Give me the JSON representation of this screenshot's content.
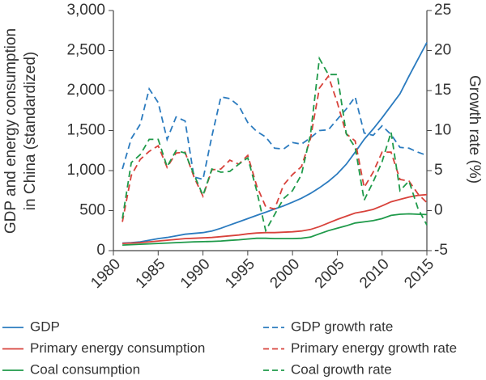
{
  "chart_data": {
    "type": "line",
    "ylabel": [
      "GDP and energy consumption",
      "in China (standardized)"
    ],
    "y2label": "Growth rate (%)",
    "x": [
      1981,
      1982,
      1983,
      1984,
      1985,
      1986,
      1987,
      1988,
      1989,
      1990,
      1991,
      1992,
      1993,
      1994,
      1995,
      1996,
      1997,
      1998,
      1999,
      2000,
      2001,
      2002,
      2003,
      2004,
      2005,
      2006,
      2007,
      2008,
      2009,
      2010,
      2011,
      2012,
      2013,
      2014,
      2015
    ],
    "xlim": [
      1980,
      2015
    ],
    "xticks": [
      1980,
      1985,
      1990,
      1995,
      2000,
      2005,
      2010,
      2015
    ],
    "ylim": [
      0,
      3000
    ],
    "yticks": [
      0,
      500,
      {
        "value": 1000,
        "label": "1,000"
      },
      {
        "value": 1500,
        "label": "1,500"
      },
      {
        "value": 2000,
        "label": "2,000"
      },
      {
        "value": 2500,
        "label": "2,500"
      },
      {
        "value": 3000,
        "label": "3,000"
      }
    ],
    "y2lim": [
      -5,
      25
    ],
    "y2ticks": [
      -5,
      0,
      5,
      10,
      15,
      20,
      25
    ],
    "series": [
      {
        "name": "GDP",
        "color": "#2b7bbf",
        "dashed": false,
        "values": [
          95,
          100,
          110,
          130,
          150,
          165,
          185,
          205,
          215,
          225,
          245,
          280,
          320,
          360,
          400,
          440,
          480,
          520,
          560,
          605,
          655,
          715,
          785,
          865,
          960,
          1080,
          1230,
          1390,
          1520,
          1660,
          1810,
          1960,
          2180,
          2390,
          2600
        ]
      },
      {
        "name": "Primary energy consumption",
        "color": "#d8423b",
        "dashed": false,
        "values": [
          90,
          95,
          100,
          110,
          120,
          130,
          140,
          150,
          155,
          160,
          165,
          175,
          185,
          195,
          210,
          220,
          225,
          225,
          230,
          235,
          245,
          265,
          300,
          345,
          390,
          430,
          470,
          490,
          515,
          560,
          610,
          640,
          670,
          690,
          700
        ]
      },
      {
        "name": "Coal consumption",
        "color": "#1f9a4a",
        "dashed": false,
        "values": [
          70,
          75,
          80,
          85,
          90,
          95,
          100,
          105,
          110,
          112,
          115,
          120,
          128,
          135,
          145,
          155,
          155,
          150,
          150,
          150,
          155,
          170,
          210,
          250,
          280,
          310,
          345,
          360,
          375,
          400,
          440,
          455,
          460,
          455,
          450
        ]
      },
      {
        "name": "GDP growth rate",
        "color": "#2b7bbf",
        "dashed": true,
        "axis": "y2",
        "values": [
          5.2,
          9,
          10.8,
          15.2,
          13.5,
          8.9,
          11.7,
          11.2,
          4.2,
          3.9,
          9.3,
          14.2,
          14,
          13.1,
          11,
          9.9,
          9.2,
          7.8,
          7.7,
          8.5,
          8.3,
          9.1,
          10,
          10.1,
          11.4,
          12.7,
          14.2,
          9.7,
          9.4,
          10.6,
          9.5,
          7.9,
          7.8,
          7.3,
          6.9
        ]
      },
      {
        "name": "Primary energy growth rate",
        "color": "#d8423b",
        "dashed": true,
        "axis": "y2",
        "values": [
          -1.4,
          4.4,
          6.4,
          7.4,
          8.1,
          5.4,
          7.2,
          7.3,
          4.2,
          1.8,
          5.1,
          5.2,
          6.3,
          5.8,
          6.9,
          3.1,
          0.5,
          0.2,
          3.2,
          4.5,
          5.5,
          9,
          15.3,
          16.8,
          13.5,
          9.6,
          8.7,
          2.9,
          4.8,
          7.3,
          7.3,
          3.9,
          3.7,
          2.1,
          1
        ]
      },
      {
        "name": "Coal growth rate",
        "color": "#1f9a4a",
        "dashed": true,
        "axis": "y2",
        "values": [
          -1,
          6,
          7,
          8.9,
          8.9,
          5.5,
          7.5,
          7.2,
          4.5,
          1.9,
          5.2,
          4.8,
          4.9,
          5.8,
          6.6,
          2.5,
          -2.5,
          -0.5,
          1.5,
          2.5,
          4.5,
          9.5,
          19,
          17,
          17,
          9.6,
          7.9,
          1.3,
          3.6,
          6.1,
          9.8,
          2.5,
          3.7,
          0.3,
          -1.8
        ]
      }
    ]
  }
}
